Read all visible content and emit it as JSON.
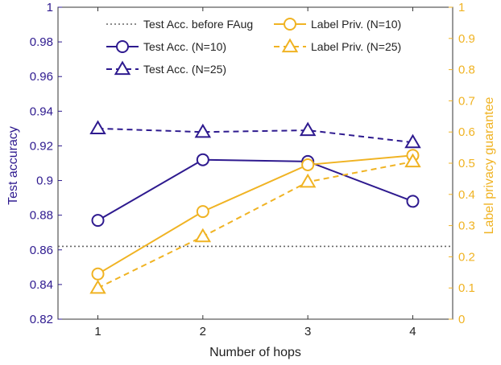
{
  "chart_data": {
    "type": "line",
    "title": "",
    "xlabel": "Number of hops",
    "ylabel_left": "Test accuracy",
    "ylabel_right": "Label privacy guarantee",
    "x": [
      1,
      2,
      3,
      4
    ],
    "x_ticks": [
      "1",
      "2",
      "3",
      "4"
    ],
    "xlim": [
      0.62,
      4.38
    ],
    "ylim_left": [
      0.82,
      1.0
    ],
    "ylim_right": [
      0,
      1.0
    ],
    "y_ticks_left": [
      "0.82",
      "0.84",
      "0.86",
      "0.88",
      "0.9",
      "0.92",
      "0.94",
      "0.96",
      "0.98",
      "1"
    ],
    "y_ticks_right": [
      "0",
      "0.1",
      "0.2",
      "0.3",
      "0.4",
      "0.5",
      "0.6",
      "0.7",
      "0.8",
      "0.9",
      "1"
    ],
    "grid": false,
    "legend_position": "top",
    "colors": {
      "accuracy": "#2e1a8f",
      "privacy": "#f0b323",
      "baseline": "#666666"
    },
    "series": [
      {
        "name": "Test Acc. before FAug",
        "axis": "left",
        "style": "dotted",
        "marker": "none",
        "color": "#666666",
        "constant": 0.862
      },
      {
        "name": "Test Acc. (N=10)",
        "axis": "left",
        "style": "solid",
        "marker": "circle",
        "color": "#2e1a8f",
        "values": [
          0.877,
          0.912,
          0.911,
          0.888
        ]
      },
      {
        "name": "Test Acc. (N=25)",
        "axis": "left",
        "style": "dashed",
        "marker": "triangle",
        "color": "#2e1a8f",
        "values": [
          0.93,
          0.928,
          0.929,
          0.922
        ]
      },
      {
        "name": "Label Priv. (N=10)",
        "axis": "right",
        "style": "solid",
        "marker": "circle",
        "color": "#f0b323",
        "values": [
          0.145,
          0.345,
          0.495,
          0.525
        ]
      },
      {
        "name": "Label Priv. (N=25)",
        "axis": "right",
        "style": "dashed",
        "marker": "triangle",
        "color": "#f0b323",
        "values": [
          0.1,
          0.265,
          0.44,
          0.505
        ]
      }
    ]
  }
}
